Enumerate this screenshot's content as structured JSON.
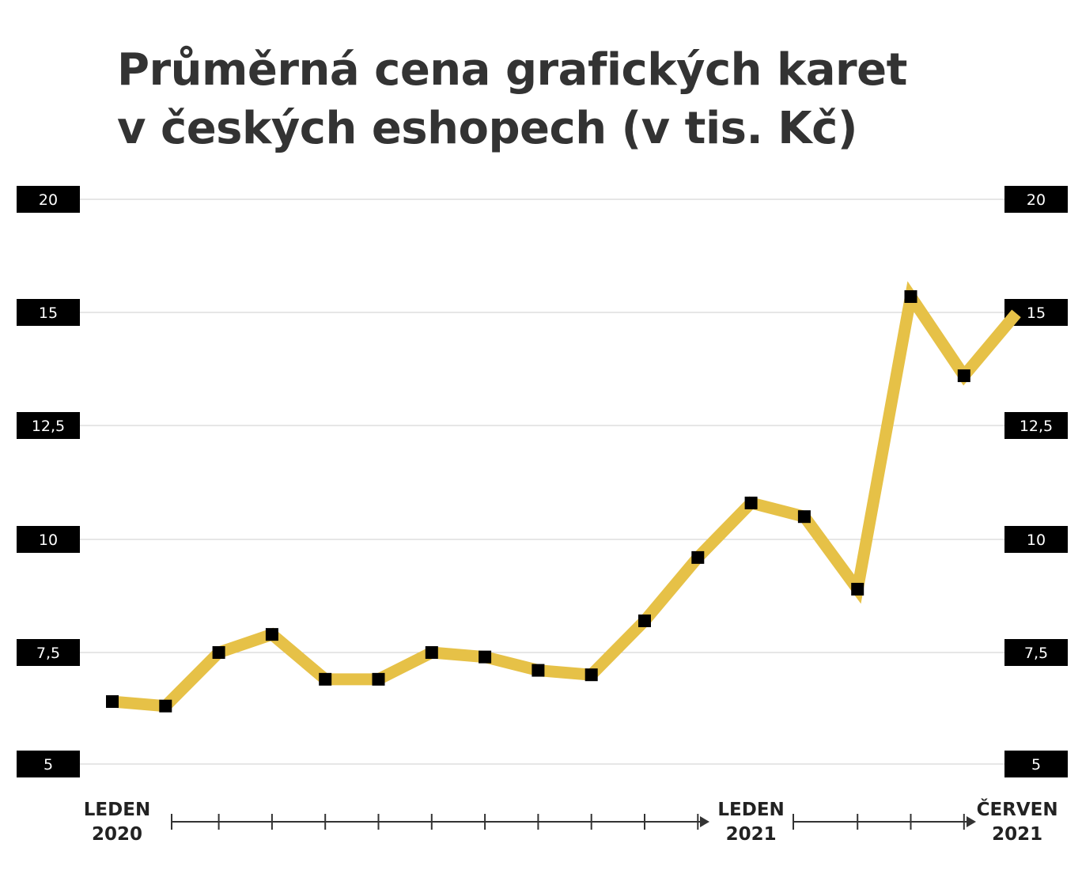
{
  "title_lines": [
    "Průměrná cena grafických karet",
    "v českých eshopech (v tis. Kč)"
  ],
  "colors": {
    "line": "#E6C147",
    "marker": "#000000",
    "label_bg": "#000000",
    "grid": "#cccccc",
    "axis": "#333333",
    "title": "#333333"
  },
  "chart_data": {
    "type": "line",
    "title": "Průměrná cena grafických karet v českých eshopech (v tis. Kč)",
    "x": [
      "2020-01",
      "2020-02",
      "2020-03",
      "2020-04",
      "2020-05",
      "2020-06",
      "2020-07",
      "2020-08",
      "2020-09",
      "2020-10",
      "2020-11",
      "2020-12",
      "2021-01",
      "2021-02",
      "2021-03",
      "2021-04",
      "2021-05",
      "2021-06"
    ],
    "series": [
      {
        "values": [
          6.4,
          6.3,
          7.5,
          7.9,
          6.9,
          6.9,
          7.5,
          7.4,
          7.1,
          7.0,
          8.2,
          9.6,
          10.8,
          10.5,
          8.9,
          15.7,
          13.6,
          15.0
        ]
      }
    ],
    "y_ticks": [
      {
        "value": 5,
        "label": "5"
      },
      {
        "value": 7.5,
        "label": "7,5"
      },
      {
        "value": 10,
        "label": "10"
      },
      {
        "value": 12.5,
        "label": "12,5"
      },
      {
        "value": 15,
        "label": "15"
      },
      {
        "value": 20,
        "label": "20"
      }
    ],
    "x_labels": [
      {
        "index": 0,
        "lines": [
          "LEDEN",
          "2020"
        ]
      },
      {
        "index": 12,
        "lines": [
          "LEDEN",
          "2021"
        ]
      },
      {
        "index": 17,
        "lines": [
          "ČERVEN",
          "2021"
        ]
      }
    ],
    "grid": true,
    "y_labels_both_sides": true
  }
}
